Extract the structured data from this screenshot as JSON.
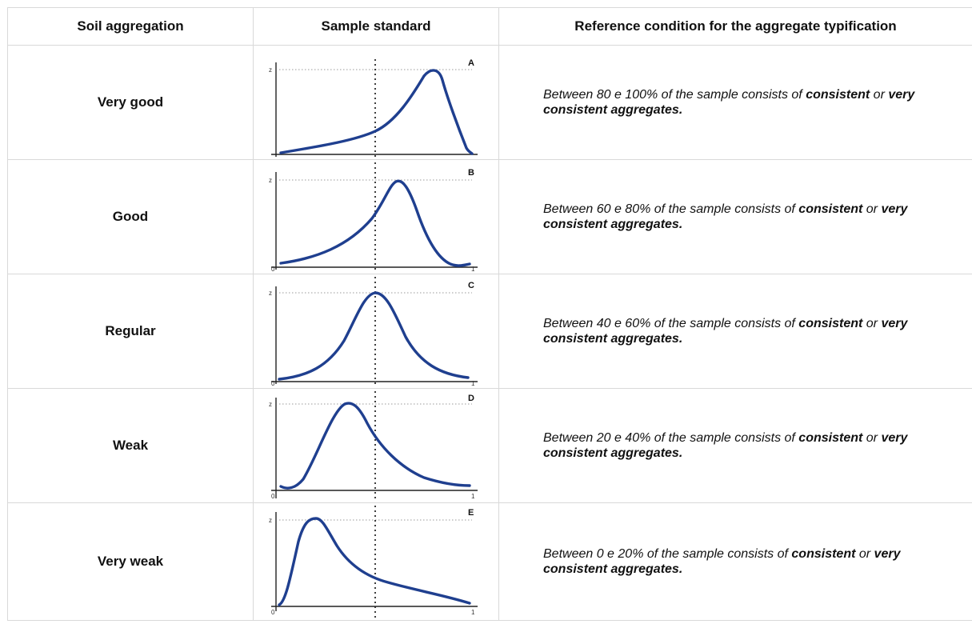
{
  "headers": {
    "col1": "Soil aggregation",
    "col2": "Sample standard",
    "col3": "Reference condition for the aggregate typification"
  },
  "axis_labels": {
    "z": "z",
    "zero": "0",
    "one": "1"
  },
  "rows": [
    {
      "label": "Very good",
      "chart_letter": "A",
      "cond_prefix": "Between 80 e 100% of the sample consists of ",
      "cond_bold1": "consistent",
      "cond_mid": " or ",
      "cond_bold2": "very consistent aggregates."
    },
    {
      "label": "Good",
      "chart_letter": "B",
      "cond_prefix": "Between 60 e 80% of the sample consists of ",
      "cond_bold1": "consistent",
      "cond_mid": " or ",
      "cond_bold2": "very consistent aggregates."
    },
    {
      "label": "Regular",
      "chart_letter": "C",
      "cond_prefix": "Between 40 e 60% of the sample consists of ",
      "cond_bold1": "consistent",
      "cond_mid": " or ",
      "cond_bold2": "very consistent aggregates."
    },
    {
      "label": "Weak",
      "chart_letter": "D",
      "cond_prefix": "Between 20 e 40% of the sample consists of ",
      "cond_bold1": "consistent",
      "cond_mid": " or ",
      "cond_bold2": "very consistent aggregates."
    },
    {
      "label": "Very weak",
      "chart_letter": "E",
      "cond_prefix": "Between 0 e 20% of the sample consists of ",
      "cond_bold1": "consistent",
      "cond_mid": " or ",
      "cond_bold2": "very consistent aggregates."
    }
  ],
  "colors": {
    "curve": "#1f3f8f",
    "border": "#d9d9d9"
  }
}
